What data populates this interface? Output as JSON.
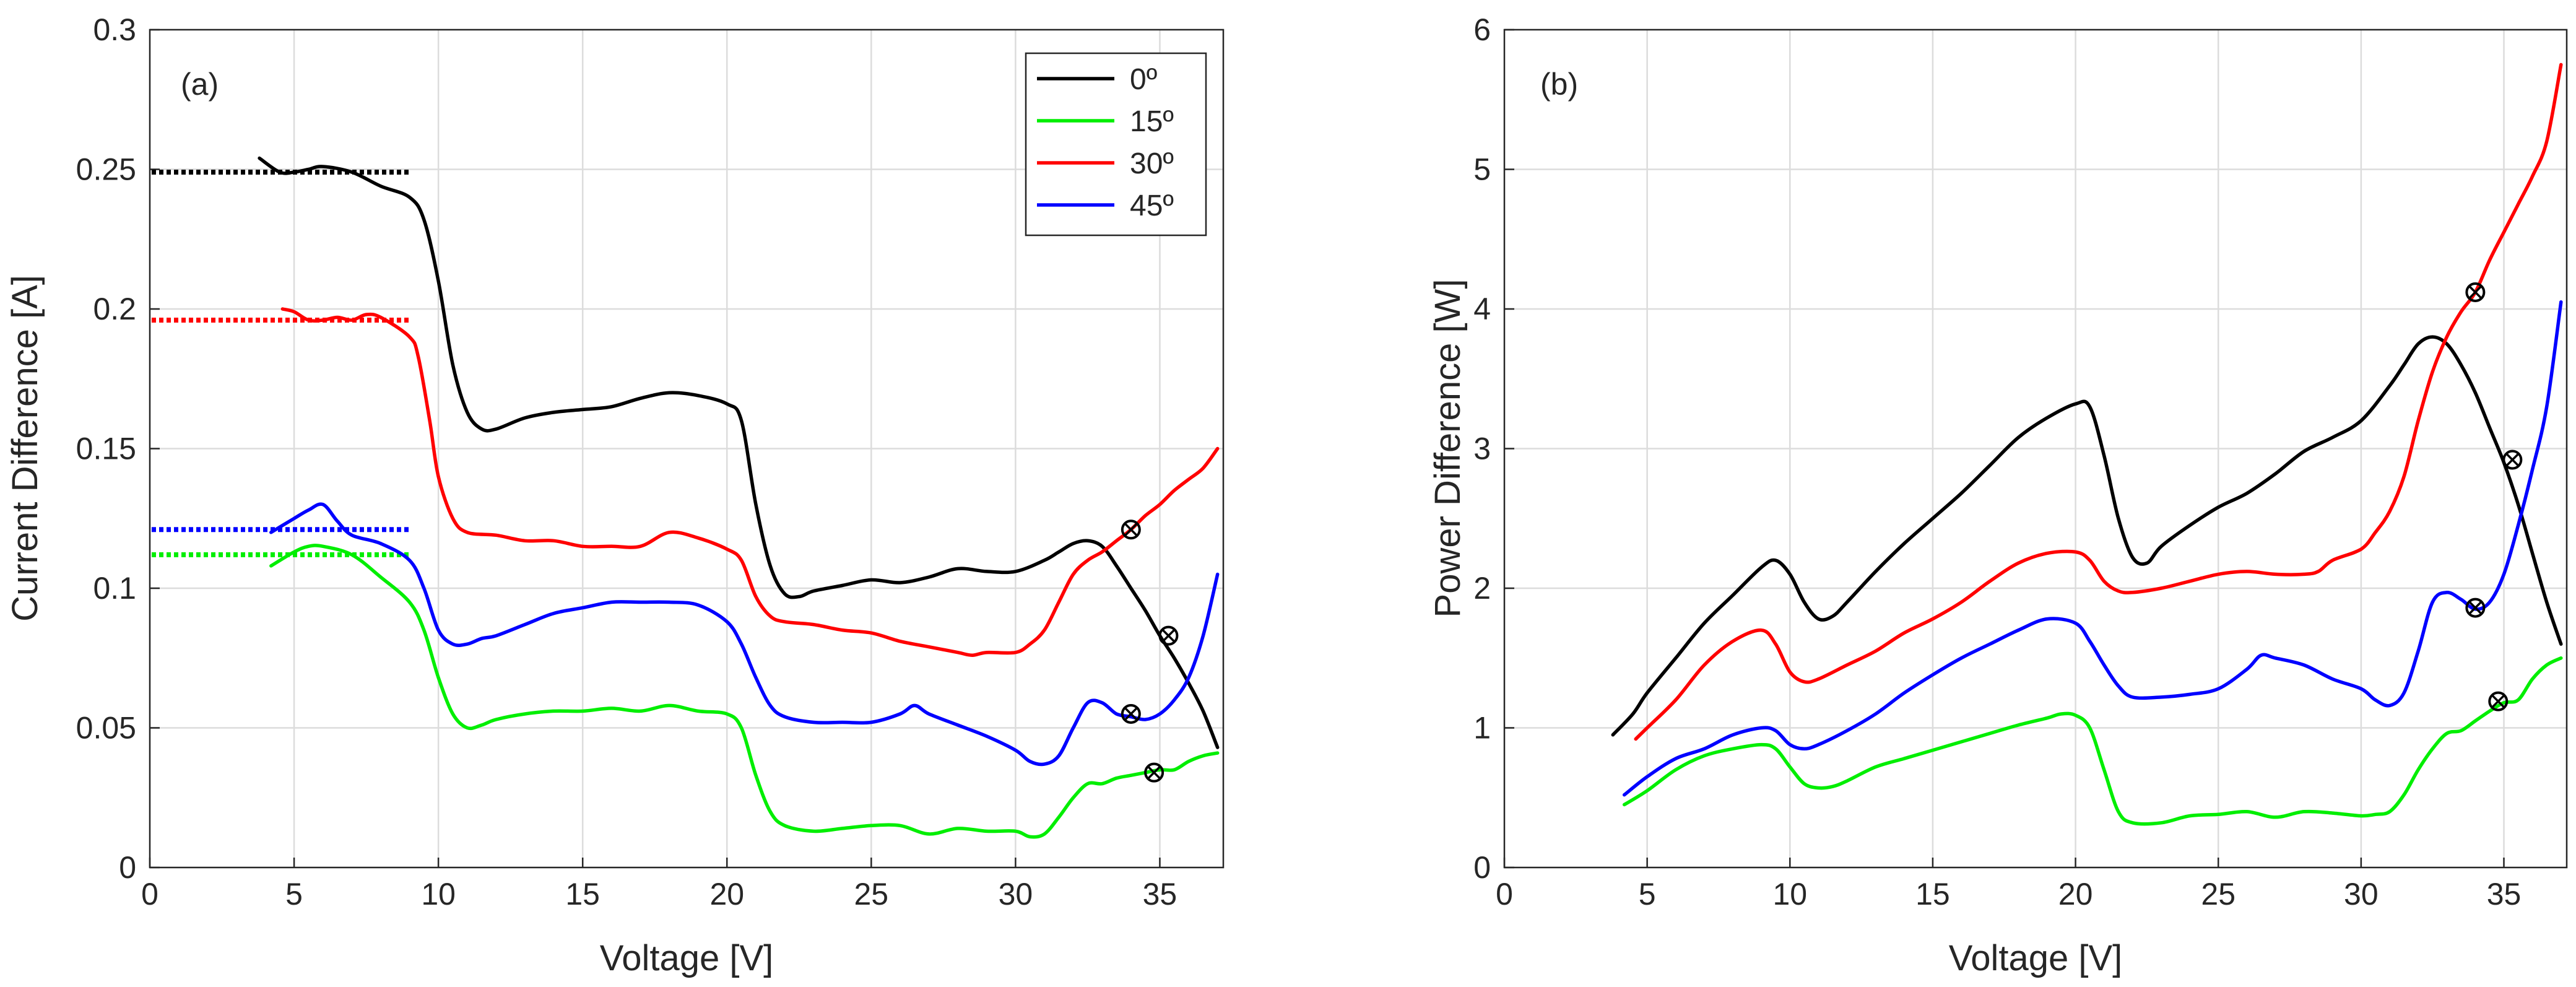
{
  "chart_data": [
    {
      "type": "line",
      "panel_label": "(a)",
      "xlabel": "Voltage [V]",
      "ylabel": "Current Difference [A]",
      "xlim": [
        0,
        37.2
      ],
      "ylim": [
        0,
        0.3
      ],
      "xticks": [
        0,
        5,
        10,
        15,
        20,
        25,
        30,
        35
      ],
      "xtick_labels": [
        "0",
        "5",
        "10",
        "15",
        "20",
        "25",
        "30",
        "35"
      ],
      "yticks": [
        0,
        0.05,
        0.1,
        0.15,
        0.2,
        0.25,
        0.3
      ],
      "ytick_labels": [
        "0",
        "0.05",
        "0.1",
        "0.15",
        "0.2",
        "0.25",
        "0.3"
      ],
      "grid": true,
      "legend_position": "top-right",
      "series": [
        {
          "name": "0º",
          "color": "#000000",
          "x": [
            3.8,
            4.5,
            5.0,
            5.5,
            6.0,
            7.0,
            8.0,
            9.0,
            9.5,
            10.0,
            10.5,
            11.0,
            11.5,
            12.0,
            13.0,
            14.0,
            15.0,
            16.0,
            17.0,
            18.0,
            19.0,
            20.0,
            20.5,
            21.0,
            21.5,
            22.0,
            22.5,
            23.0,
            24.0,
            25.0,
            26.0,
            27.0,
            28.0,
            29.0,
            30.0,
            31.0,
            31.5,
            32.0,
            32.5,
            33.0,
            33.5,
            34.0,
            34.5,
            35.0,
            35.5,
            36.0,
            36.5,
            37.0
          ],
          "values": [
            0.254,
            0.249,
            0.249,
            0.25,
            0.251,
            0.249,
            0.244,
            0.24,
            0.232,
            0.21,
            0.18,
            0.163,
            0.157,
            0.157,
            0.161,
            0.163,
            0.164,
            0.165,
            0.168,
            0.17,
            0.169,
            0.166,
            0.16,
            0.13,
            0.108,
            0.098,
            0.097,
            0.099,
            0.101,
            0.103,
            0.102,
            0.104,
            0.107,
            0.106,
            0.106,
            0.11,
            0.113,
            0.116,
            0.117,
            0.115,
            0.108,
            0.1,
            0.092,
            0.083,
            0.075,
            0.066,
            0.056,
            0.043
          ]
        },
        {
          "name": "15º",
          "color": "#00ee00",
          "x": [
            4.2,
            5.0,
            5.5,
            6.0,
            7.0,
            8.0,
            9.0,
            9.5,
            10.0,
            10.5,
            11.0,
            11.5,
            12.0,
            13.0,
            14.0,
            15.0,
            16.0,
            17.0,
            18.0,
            19.0,
            20.0,
            20.5,
            21.0,
            21.5,
            22.0,
            23.0,
            24.0,
            25.0,
            26.0,
            27.0,
            28.0,
            29.0,
            30.0,
            30.5,
            31.0,
            31.5,
            32.0,
            32.5,
            33.0,
            33.5,
            34.0,
            34.5,
            35.0,
            35.5,
            36.0,
            36.5,
            37.0
          ],
          "values": [
            0.108,
            0.113,
            0.115,
            0.115,
            0.112,
            0.104,
            0.095,
            0.085,
            0.068,
            0.055,
            0.05,
            0.051,
            0.053,
            0.055,
            0.056,
            0.056,
            0.057,
            0.056,
            0.058,
            0.056,
            0.055,
            0.05,
            0.033,
            0.02,
            0.015,
            0.013,
            0.014,
            0.015,
            0.015,
            0.012,
            0.014,
            0.013,
            0.013,
            0.011,
            0.012,
            0.018,
            0.025,
            0.03,
            0.03,
            0.032,
            0.033,
            0.034,
            0.035,
            0.035,
            0.038,
            0.04,
            0.041
          ]
        },
        {
          "name": "30º",
          "color": "#ff0000",
          "x": [
            4.6,
            5.0,
            5.5,
            6.0,
            6.5,
            7.0,
            7.5,
            8.0,
            9.0,
            9.3,
            9.7,
            10.0,
            10.5,
            11.0,
            12.0,
            13.0,
            14.0,
            15.0,
            16.0,
            17.0,
            18.0,
            19.0,
            20.0,
            20.5,
            21.0,
            21.5,
            22.0,
            23.0,
            24.0,
            25.0,
            26.0,
            27.0,
            28.0,
            28.5,
            29.0,
            30.0,
            30.5,
            31.0,
            31.5,
            32.0,
            32.5,
            33.0,
            33.5,
            34.0,
            34.5,
            35.0,
            35.5,
            36.0,
            36.5,
            37.0
          ],
          "values": [
            0.2,
            0.199,
            0.196,
            0.196,
            0.197,
            0.196,
            0.198,
            0.197,
            0.19,
            0.183,
            0.16,
            0.14,
            0.125,
            0.12,
            0.119,
            0.117,
            0.117,
            0.115,
            0.115,
            0.115,
            0.12,
            0.118,
            0.114,
            0.11,
            0.097,
            0.09,
            0.088,
            0.087,
            0.085,
            0.084,
            0.081,
            0.079,
            0.077,
            0.076,
            0.077,
            0.077,
            0.08,
            0.085,
            0.095,
            0.105,
            0.11,
            0.113,
            0.117,
            0.121,
            0.126,
            0.13,
            0.135,
            0.139,
            0.143,
            0.15
          ]
        },
        {
          "name": "45º",
          "color": "#0000ff",
          "x": [
            4.2,
            5.0,
            5.5,
            6.0,
            6.5,
            7.0,
            8.0,
            9.0,
            9.5,
            10.0,
            10.5,
            11.0,
            11.5,
            12.0,
            13.0,
            14.0,
            15.0,
            16.0,
            17.0,
            18.0,
            19.0,
            20.0,
            20.5,
            21.0,
            21.5,
            22.0,
            23.0,
            24.0,
            25.0,
            26.0,
            26.5,
            27.0,
            28.0,
            29.0,
            30.0,
            30.5,
            31.0,
            31.5,
            32.0,
            32.5,
            33.0,
            33.5,
            34.0,
            34.5,
            35.0,
            35.5,
            36.0,
            36.5,
            37.0
          ],
          "values": [
            0.12,
            0.125,
            0.128,
            0.13,
            0.124,
            0.119,
            0.116,
            0.11,
            0.1,
            0.085,
            0.08,
            0.08,
            0.082,
            0.083,
            0.087,
            0.091,
            0.093,
            0.095,
            0.095,
            0.095,
            0.094,
            0.088,
            0.08,
            0.068,
            0.058,
            0.054,
            0.052,
            0.052,
            0.052,
            0.055,
            0.058,
            0.055,
            0.051,
            0.047,
            0.042,
            0.038,
            0.037,
            0.04,
            0.05,
            0.059,
            0.059,
            0.055,
            0.054,
            0.053,
            0.055,
            0.06,
            0.068,
            0.083,
            0.105
          ]
        }
      ],
      "reference_lines": [
        {
          "series": "0º",
          "color": "#000000",
          "x_start": 0,
          "x_end": 9,
          "value": 0.249
        },
        {
          "series": "30º",
          "color": "#ff0000",
          "x_start": 0,
          "x_end": 9,
          "value": 0.196
        },
        {
          "series": "45º",
          "color": "#0000ff",
          "x_start": 0,
          "x_end": 9,
          "value": 0.121
        },
        {
          "series": "15º",
          "color": "#00ee00",
          "x_start": 0,
          "x_end": 9,
          "value": 0.112
        }
      ],
      "markers": [
        {
          "series": "30º",
          "x": 34.0,
          "y": 0.121
        },
        {
          "series": "0º",
          "x": 35.3,
          "y": 0.083
        },
        {
          "series": "45º",
          "x": 34.0,
          "y": 0.055
        },
        {
          "series": "15º",
          "x": 34.8,
          "y": 0.034
        }
      ]
    },
    {
      "type": "line",
      "panel_label": "(b)",
      "xlabel": "Voltage [V]",
      "ylabel": "Power Difference [W]",
      "xlim": [
        0,
        37.2
      ],
      "ylim": [
        0,
        6
      ],
      "xticks": [
        0,
        5,
        10,
        15,
        20,
        25,
        30,
        35
      ],
      "xtick_labels": [
        "0",
        "5",
        "10",
        "15",
        "20",
        "25",
        "30",
        "35"
      ],
      "yticks": [
        0,
        1,
        2,
        3,
        4,
        5,
        6
      ],
      "ytick_labels": [
        "0",
        "1",
        "2",
        "3",
        "4",
        "5",
        "6"
      ],
      "grid": true,
      "series": [
        {
          "name": "0º",
          "color": "#000000",
          "x": [
            3.8,
            4.5,
            5.0,
            6.0,
            7.0,
            8.0,
            9.0,
            9.5,
            10.0,
            10.5,
            11.0,
            11.5,
            12.0,
            13.0,
            14.0,
            15.0,
            16.0,
            17.0,
            18.0,
            19.0,
            20.0,
            20.5,
            21.0,
            21.5,
            22.0,
            22.5,
            23.0,
            24.0,
            25.0,
            26.0,
            27.0,
            28.0,
            29.0,
            30.0,
            31.0,
            31.5,
            32.0,
            32.5,
            33.0,
            33.5,
            34.0,
            34.5,
            35.0,
            35.5,
            36.0,
            36.5,
            37.0
          ],
          "values": [
            0.95,
            1.1,
            1.25,
            1.5,
            1.75,
            1.95,
            2.15,
            2.2,
            2.1,
            1.9,
            1.78,
            1.8,
            1.9,
            2.12,
            2.32,
            2.5,
            2.68,
            2.88,
            3.08,
            3.22,
            3.32,
            3.3,
            2.95,
            2.5,
            2.22,
            2.18,
            2.3,
            2.45,
            2.58,
            2.68,
            2.82,
            2.98,
            3.08,
            3.2,
            3.45,
            3.6,
            3.75,
            3.8,
            3.75,
            3.6,
            3.4,
            3.15,
            2.9,
            2.6,
            2.25,
            1.9,
            1.6
          ]
        },
        {
          "name": "15º",
          "color": "#00ee00",
          "x": [
            4.2,
            5.0,
            6.0,
            7.0,
            8.0,
            9.0,
            9.5,
            10.0,
            10.5,
            11.0,
            11.5,
            12.0,
            13.0,
            14.0,
            15.0,
            16.0,
            17.0,
            18.0,
            19.0,
            19.5,
            20.0,
            20.5,
            21.0,
            21.5,
            22.0,
            23.0,
            24.0,
            25.0,
            26.0,
            27.0,
            28.0,
            29.0,
            30.0,
            30.5,
            31.0,
            31.5,
            32.0,
            32.5,
            33.0,
            33.5,
            34.0,
            34.5,
            35.0,
            35.5,
            36.0,
            36.5,
            37.0
          ],
          "values": [
            0.45,
            0.55,
            0.7,
            0.8,
            0.85,
            0.88,
            0.85,
            0.72,
            0.6,
            0.57,
            0.58,
            0.62,
            0.72,
            0.78,
            0.84,
            0.9,
            0.96,
            1.02,
            1.07,
            1.1,
            1.09,
            1.0,
            0.7,
            0.4,
            0.32,
            0.32,
            0.37,
            0.38,
            0.4,
            0.36,
            0.4,
            0.39,
            0.37,
            0.38,
            0.4,
            0.52,
            0.7,
            0.85,
            0.96,
            0.98,
            1.05,
            1.12,
            1.18,
            1.2,
            1.35,
            1.45,
            1.5
          ]
        },
        {
          "name": "30º",
          "color": "#ff0000",
          "x": [
            4.6,
            5.0,
            6.0,
            7.0,
            8.0,
            9.0,
            9.5,
            10.0,
            10.5,
            11.0,
            12.0,
            13.0,
            14.0,
            15.0,
            16.0,
            17.0,
            18.0,
            19.0,
            20.0,
            20.5,
            21.0,
            21.5,
            22.0,
            23.0,
            24.0,
            25.0,
            26.0,
            27.0,
            28.0,
            28.5,
            29.0,
            30.0,
            30.5,
            31.0,
            31.5,
            32.0,
            32.5,
            33.0,
            33.5,
            34.0,
            34.5,
            35.0,
            35.5,
            36.0,
            36.5,
            37.0
          ],
          "values": [
            0.92,
            1.0,
            1.2,
            1.45,
            1.62,
            1.7,
            1.6,
            1.4,
            1.33,
            1.35,
            1.45,
            1.55,
            1.68,
            1.78,
            1.9,
            2.05,
            2.18,
            2.25,
            2.26,
            2.2,
            2.05,
            1.98,
            1.97,
            2.0,
            2.05,
            2.1,
            2.12,
            2.1,
            2.1,
            2.12,
            2.2,
            2.28,
            2.4,
            2.55,
            2.8,
            3.2,
            3.55,
            3.8,
            3.98,
            4.12,
            4.35,
            4.55,
            4.75,
            4.95,
            5.2,
            5.75
          ]
        },
        {
          "name": "45º",
          "color": "#0000ff",
          "x": [
            4.2,
            5.0,
            6.0,
            7.0,
            8.0,
            9.0,
            9.5,
            10.0,
            10.5,
            11.0,
            12.0,
            13.0,
            14.0,
            15.0,
            16.0,
            17.0,
            18.0,
            19.0,
            20.0,
            20.5,
            21.0,
            21.5,
            22.0,
            23.0,
            24.0,
            25.0,
            26.0,
            26.5,
            27.0,
            28.0,
            29.0,
            30.0,
            30.5,
            31.0,
            31.5,
            32.0,
            32.5,
            33.0,
            33.5,
            34.0,
            34.5,
            35.0,
            35.5,
            36.0,
            36.5,
            37.0
          ],
          "values": [
            0.52,
            0.65,
            0.78,
            0.85,
            0.95,
            1.0,
            0.98,
            0.88,
            0.85,
            0.88,
            0.98,
            1.1,
            1.25,
            1.38,
            1.5,
            1.6,
            1.7,
            1.78,
            1.75,
            1.62,
            1.45,
            1.3,
            1.22,
            1.22,
            1.24,
            1.28,
            1.42,
            1.52,
            1.5,
            1.45,
            1.35,
            1.28,
            1.2,
            1.16,
            1.25,
            1.55,
            1.9,
            1.97,
            1.92,
            1.85,
            1.9,
            2.1,
            2.45,
            2.85,
            3.3,
            4.05
          ]
        }
      ],
      "markers": [
        {
          "series": "30º",
          "x": 34.0,
          "y": 4.12
        },
        {
          "series": "0º",
          "x": 35.3,
          "y": 2.92
        },
        {
          "series": "45º",
          "x": 34.0,
          "y": 1.86
        },
        {
          "series": "15º",
          "x": 34.8,
          "y": 1.19
        }
      ]
    }
  ]
}
